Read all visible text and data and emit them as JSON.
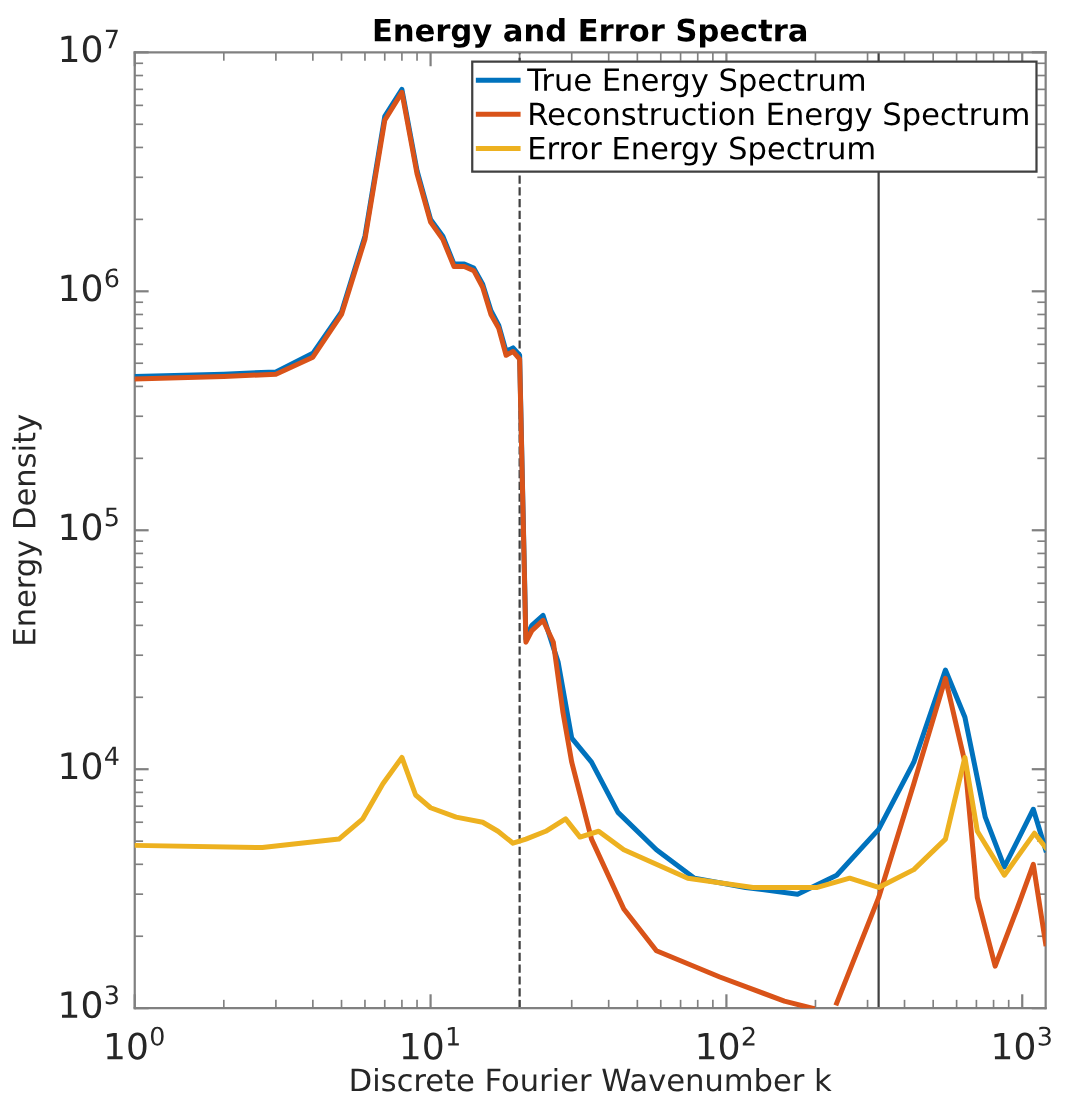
{
  "chart_data": {
    "type": "line",
    "title": "Energy and Error Spectra",
    "xlabel": "Discrete Fourier Wavenumber k",
    "ylabel": "Energy Density",
    "log": "xy",
    "xlim": [
      1,
      1200
    ],
    "ylim": [
      1000,
      10000000
    ],
    "xticks": [
      {
        "value": 1,
        "label": "10$^{0}$"
      },
      {
        "value": 10,
        "label": "10$^{1}$"
      },
      {
        "value": 100,
        "label": "10$^{2}$"
      },
      {
        "value": 1000,
        "label": "10$^{3}$"
      }
    ],
    "yticks": [
      {
        "value": 1000,
        "label": "10$^{3}$"
      },
      {
        "value": 10000,
        "label": "10$^{4}$"
      },
      {
        "value": 100000,
        "label": "10$^{5}$"
      },
      {
        "value": 1000000,
        "label": "10$^{6}$"
      },
      {
        "value": 10000000,
        "label": "10$^{7}$"
      }
    ],
    "grid": false,
    "legend": "top right",
    "marker": "none",
    "line_style": "solid",
    "ref_lines": [
      {
        "axis": "x",
        "value": 20,
        "color": "#404040",
        "line_style": "dashed"
      },
      {
        "axis": "x",
        "value": 327,
        "color": "#404040",
        "line_style": "solid"
      }
    ],
    "series": [
      {
        "name": "True Energy Spectrum",
        "color": "#0072bd",
        "x": [
          1,
          2,
          3,
          4,
          5,
          6,
          7,
          8,
          9,
          10,
          11,
          12,
          13,
          14,
          15,
          16,
          17,
          18,
          19,
          20,
          21,
          22,
          24,
          27,
          30,
          35,
          43,
          58,
          78,
          116,
          174,
          236,
          327,
          430,
          550,
          640,
          750,
          870,
          1090,
          1200
        ],
        "values": [
          440000,
          450000,
          460000,
          550000,
          820000,
          1700000,
          5400000,
          7000000,
          3200000,
          2000000,
          1700000,
          1300000,
          1300000,
          1250000,
          1070000,
          830000,
          720000,
          560000,
          580000,
          540000,
          35000,
          40000,
          44000,
          28000,
          13500,
          10700,
          6600,
          4600,
          3500,
          3200,
          3000,
          3600,
          5600,
          10700,
          26000,
          16500,
          6300,
          3900,
          6800,
          4600
        ]
      },
      {
        "name": "Reconstruction Energy Spectrum",
        "color": "#d95319",
        "x": [
          1,
          2,
          3,
          4,
          5,
          6,
          7,
          8,
          9,
          10,
          11,
          12,
          13,
          14,
          15,
          16,
          17,
          18,
          19,
          20,
          21,
          22,
          24,
          26,
          28,
          30,
          35,
          45,
          58,
          95,
          157,
          195,
          215,
          236,
          327,
          430,
          550,
          640,
          705,
          810,
          960,
          1090,
          1200
        ],
        "values": [
          430000,
          440000,
          450000,
          530000,
          800000,
          1650000,
          5200000,
          6800000,
          3100000,
          1950000,
          1650000,
          1270000,
          1270000,
          1220000,
          1040000,
          800000,
          700000,
          540000,
          560000,
          520000,
          34000,
          38000,
          42000,
          34000,
          17400,
          10700,
          5100,
          2600,
          1740,
          1350,
          1070,
          1000,
          null,
          1050,
          2900,
          8700,
          24000,
          10700,
          2900,
          1500,
          2600,
          4000,
          1860
        ]
      },
      {
        "name": "Error Energy Spectrum",
        "color": "#edb120",
        "x": [
          1,
          2.7,
          4.9,
          5.9,
          6.9,
          8,
          8.9,
          10,
          12.2,
          15,
          16.9,
          19,
          21,
          24.5,
          28.6,
          32,
          37,
          45,
          74,
          123,
          203,
          261,
          327,
          430,
          550,
          640,
          705,
          870,
          1100,
          1200
        ],
        "values": [
          4800,
          4700,
          5100,
          6200,
          8700,
          11200,
          7800,
          6900,
          6300,
          6000,
          5500,
          4900,
          5100,
          5500,
          6200,
          5200,
          5500,
          4600,
          3500,
          3200,
          3200,
          3500,
          3200,
          3800,
          5100,
          11200,
          5500,
          3600,
          5400,
          4700
        ]
      }
    ]
  }
}
